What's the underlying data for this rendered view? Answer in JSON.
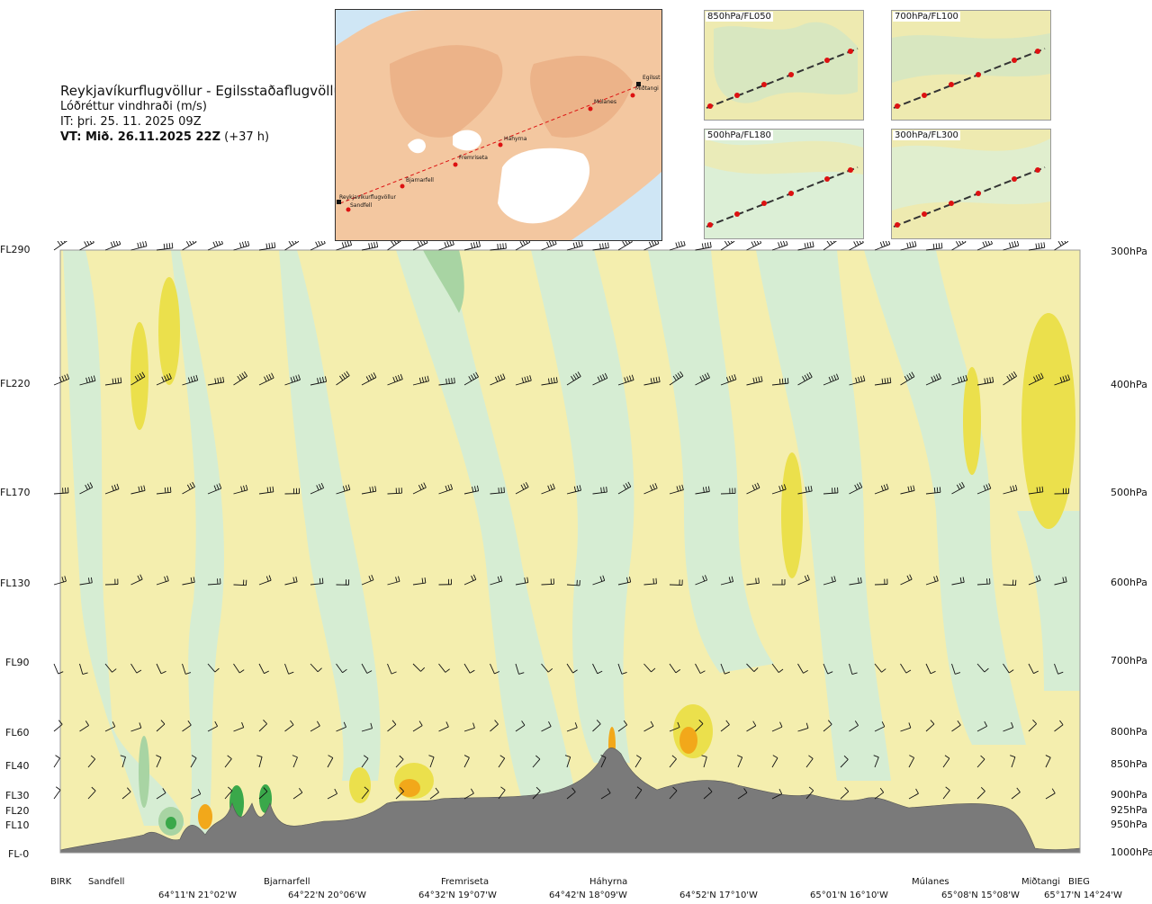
{
  "title": {
    "route": "Reykjavíkurflugvöllur - Egilsstaðaflugvöllur",
    "variable": "Lóðréttur vindhraði (m/s)",
    "issue_time": "IT: þri. 25. 11. 2025 09Z",
    "valid_time_bold": "VT: Mið. 26.11.2025 22Z",
    "valid_offset": "(+37 h)"
  },
  "map": {
    "waypoints": [
      "Reykjavíkurflugvöllur",
      "Sandfell",
      "Bjarnarfell",
      "Fremriseta",
      "Háhyrna",
      "Múlanes",
      "Miðtangi",
      "Egilsst"
    ]
  },
  "mini_maps": [
    {
      "label": "850hPa/FL050"
    },
    {
      "label": "700hPa/FL100"
    },
    {
      "label": "500hPa/FL180"
    },
    {
      "label": "300hPa/FL300"
    }
  ],
  "levels_left": [
    "FL290",
    "FL220",
    "FL170",
    "FL130",
    "FL90",
    "FL60",
    "FL40",
    "FL30",
    "FL20",
    "FL10",
    "FL-0"
  ],
  "levels_right": [
    "300hPa",
    "400hPa",
    "500hPa",
    "600hPa",
    "700hPa",
    "800hPa",
    "850hPa",
    "900hPa",
    "925hPa",
    "950hPa",
    "1000hPa"
  ],
  "locations": [
    "BIRK",
    "Sandfell",
    "Bjarnarfell",
    "Fremriseta",
    "Háhyrna",
    "Múlanes",
    "Miðtangi",
    "BIEG"
  ],
  "coordinates": [
    "64°11'N 21°02'W",
    "64°22'N 20°06'W",
    "64°32'N 19°07'W",
    "64°42'N 18°09'W",
    "64°52'N 17°10'W",
    "65°01'N 16°10'W",
    "65°08'N 15°08'W",
    "65°17'N 14°24'W"
  ],
  "colors": {
    "terrain": "#7a7a7a",
    "updraft_light": "#d4ecd2",
    "updraft_mid": "#a9d5a4",
    "updraft_strong": "#3aa84a",
    "downdraft_light": "#f6f0a8",
    "downdraft_mid": "#ece14e",
    "downdraft_strong": "#f2a81a",
    "route_line": "#d11"
  }
}
